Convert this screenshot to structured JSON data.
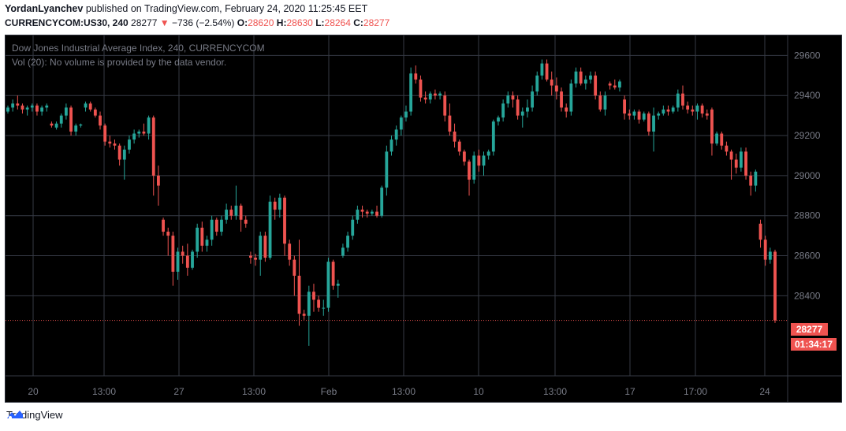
{
  "header": {
    "author": "YordanLyanchev",
    "published": "published on TradingView.com, February 24, 2020 11:25:45 EET",
    "symbol": "CURRENCYCOM:US30, 240",
    "last": "28277",
    "change_arrow": "▼",
    "change": "−736 (−2.54%)",
    "o_label": "O:",
    "o": "28620",
    "h_label": "H:",
    "h": "28630",
    "l_label": "L:",
    "l": "28264",
    "c_label": "C:",
    "c": "28277"
  },
  "legend": {
    "title": "Dow Jones Industrial Average Index, 240, CURRENCYCOM",
    "volume_note": "Vol (20): No volume is provided by the data vendor."
  },
  "price_label": "28277",
  "countdown_label": "01:34:17",
  "footer": {
    "brand": "TradingView"
  },
  "colors": {
    "up": "#26a69a",
    "down": "#ef5350",
    "grid": "#363a45",
    "text": "#787b86",
    "background": "#000000"
  },
  "chart_data": {
    "type": "candlestick",
    "title": "Dow Jones Industrial Average Index, 240, CURRENCYCOM",
    "ylim": [
      28000,
      29700
    ],
    "y_ticks": [
      29600,
      29400,
      29200,
      29000,
      28800,
      28600,
      28400
    ],
    "x_ticks": [
      "20",
      "13:00",
      "27",
      "13:00",
      "Feb",
      "13:00",
      "10",
      "13:00",
      "17",
      "17:00",
      "24"
    ],
    "last_price": 28277,
    "grid": true,
    "ohlc": [
      [
        29320,
        29350,
        29310,
        29340
      ],
      [
        29340,
        29380,
        29320,
        29360
      ],
      [
        29360,
        29400,
        29330,
        29350
      ],
      [
        29350,
        29360,
        29310,
        29330
      ],
      [
        29330,
        29350,
        29300,
        29340
      ],
      [
        29340,
        29360,
        29320,
        29350
      ],
      [
        29350,
        29360,
        29300,
        29320
      ],
      [
        29320,
        29350,
        29300,
        29340
      ],
      [
        29340,
        29360,
        29320,
        29350
      ],
      [
        29260,
        29270,
        29240,
        29250
      ],
      [
        29240,
        29270,
        29230,
        29260
      ],
      [
        29260,
        29310,
        29240,
        29300
      ],
      [
        29300,
        29360,
        29280,
        29340
      ],
      [
        29340,
        29350,
        29200,
        29220
      ],
      [
        29220,
        29260,
        29200,
        29250
      ],
      [
        29250,
        29260,
        29240,
        29255
      ],
      [
        29340,
        29370,
        29320,
        29360
      ],
      [
        29360,
        29370,
        29320,
        29330
      ],
      [
        29330,
        29340,
        29290,
        29300
      ],
      [
        29300,
        29320,
        29230,
        29250
      ],
      [
        29250,
        29260,
        29150,
        29170
      ],
      [
        29170,
        29200,
        29140,
        29160
      ],
      [
        29160,
        29180,
        29130,
        29150
      ],
      [
        29150,
        29160,
        29050,
        29080
      ],
      [
        29080,
        29150,
        28980,
        29130
      ],
      [
        29130,
        29200,
        29110,
        29180
      ],
      [
        29180,
        29230,
        29160,
        29210
      ],
      [
        29210,
        29230,
        29190,
        29220
      ],
      [
        29220,
        29260,
        29200,
        29210
      ],
      [
        29210,
        29300,
        29180,
        29290
      ],
      [
        29290,
        29300,
        28900,
        29000
      ],
      [
        29000,
        29050,
        28850,
        28950
      ],
      [
        28780,
        28790,
        28700,
        28720
      ],
      [
        28720,
        28740,
        28600,
        28700
      ],
      [
        28700,
        28720,
        28450,
        28520
      ],
      [
        28520,
        28640,
        28480,
        28620
      ],
      [
        28620,
        28650,
        28560,
        28600
      ],
      [
        28600,
        28660,
        28500,
        28540
      ],
      [
        28540,
        28630,
        28530,
        28620
      ],
      [
        28620,
        28760,
        28590,
        28740
      ],
      [
        28740,
        28770,
        28620,
        28650
      ],
      [
        28650,
        28700,
        28620,
        28680
      ],
      [
        28680,
        28800,
        28650,
        28780
      ],
      [
        28780,
        28790,
        28700,
        28720
      ],
      [
        28720,
        28800,
        28700,
        28780
      ],
      [
        28780,
        28860,
        28760,
        28830
      ],
      [
        28830,
        28850,
        28780,
        28800
      ],
      [
        28800,
        28950,
        28780,
        28850
      ],
      [
        28850,
        28860,
        28720,
        28780
      ],
      [
        28780,
        28800,
        28740,
        28760
      ],
      [
        28600,
        28620,
        28560,
        28590
      ],
      [
        28590,
        28610,
        28550,
        28580
      ],
      [
        28580,
        28720,
        28500,
        28700
      ],
      [
        28700,
        28720,
        28570,
        28590
      ],
      [
        28590,
        28900,
        28580,
        28870
      ],
      [
        28870,
        28890,
        28780,
        28830
      ],
      [
        28830,
        28910,
        28790,
        28890
      ],
      [
        28890,
        28900,
        28600,
        28660
      ],
      [
        28660,
        28680,
        28550,
        28580
      ],
      [
        28580,
        28600,
        28400,
        28500
      ],
      [
        28500,
        28680,
        28250,
        28310
      ],
      [
        28310,
        28330,
        28280,
        28300
      ],
      [
        28300,
        28450,
        28150,
        28420
      ],
      [
        28420,
        28460,
        28320,
        28380
      ],
      [
        28380,
        28400,
        28320,
        28340
      ],
      [
        28340,
        28380,
        28300,
        28340
      ],
      [
        28340,
        28590,
        28320,
        28570
      ],
      [
        28570,
        28580,
        28430,
        28450
      ],
      [
        28450,
        28480,
        28390,
        28460
      ],
      [
        28600,
        28660,
        28590,
        28640
      ],
      [
        28640,
        28720,
        28620,
        28700
      ],
      [
        28700,
        28800,
        28680,
        28780
      ],
      [
        28780,
        28850,
        28760,
        28830
      ],
      [
        28830,
        28850,
        28790,
        28820
      ],
      [
        28820,
        28830,
        28790,
        28810
      ],
      [
        28810,
        28830,
        28800,
        28820
      ],
      [
        28820,
        28850,
        28790,
        28800
      ],
      [
        28800,
        28950,
        28790,
        28940
      ],
      [
        28940,
        29150,
        28900,
        29120
      ],
      [
        29120,
        29200,
        29100,
        29180
      ],
      [
        29180,
        29250,
        29150,
        29230
      ],
      [
        29230,
        29300,
        29200,
        29290
      ],
      [
        29290,
        29350,
        29270,
        29320
      ],
      [
        29320,
        29540,
        29300,
        29510
      ],
      [
        29510,
        29550,
        29460,
        29480
      ],
      [
        29480,
        29500,
        29370,
        29390
      ],
      [
        29390,
        29420,
        29360,
        29380
      ],
      [
        29380,
        29420,
        29360,
        29410
      ],
      [
        29410,
        29430,
        29380,
        29400
      ],
      [
        29400,
        29420,
        29380,
        29410
      ],
      [
        29400,
        29420,
        29270,
        29300
      ],
      [
        29300,
        29360,
        29200,
        29220
      ],
      [
        29220,
        29260,
        29140,
        29170
      ],
      [
        29170,
        29180,
        29100,
        29120
      ],
      [
        29120,
        29130,
        29050,
        29070
      ],
      [
        29070,
        29080,
        28900,
        28980
      ],
      [
        28980,
        29120,
        28960,
        29100
      ],
      [
        29100,
        29130,
        29020,
        29050
      ],
      [
        29050,
        29120,
        29000,
        29100
      ],
      [
        29100,
        29130,
        29080,
        29120
      ],
      [
        29120,
        29280,
        29100,
        29270
      ],
      [
        29270,
        29300,
        29250,
        29290
      ],
      [
        29290,
        29380,
        29270,
        29360
      ],
      [
        29360,
        29420,
        29340,
        29400
      ],
      [
        29400,
        29420,
        29340,
        29380
      ],
      [
        29380,
        29400,
        29280,
        29300
      ],
      [
        29300,
        29340,
        29240,
        29320
      ],
      [
        29320,
        29380,
        29290,
        29340
      ],
      [
        29340,
        29450,
        29320,
        29420
      ],
      [
        29420,
        29520,
        29400,
        29500
      ],
      [
        29500,
        29580,
        29480,
        29560
      ],
      [
        29560,
        29580,
        29470,
        29480
      ],
      [
        29480,
        29520,
        29400,
        29450
      ],
      [
        29450,
        29490,
        29380,
        29420
      ],
      [
        29420,
        29440,
        29320,
        29340
      ],
      [
        29340,
        29360,
        29290,
        29320
      ],
      [
        29320,
        29480,
        29300,
        29460
      ],
      [
        29460,
        29540,
        29440,
        29520
      ],
      [
        29520,
        29540,
        29450,
        29460
      ],
      [
        29460,
        29500,
        29430,
        29480
      ],
      [
        29480,
        29520,
        29460,
        29500
      ],
      [
        29500,
        29520,
        29380,
        29400
      ],
      [
        29400,
        29420,
        29320,
        29330
      ],
      [
        29330,
        29420,
        29300,
        29400
      ],
      [
        29460,
        29470,
        29430,
        29450
      ],
      [
        29450,
        29480,
        29430,
        29440
      ],
      [
        29440,
        29480,
        29420,
        29470
      ],
      [
        29380,
        29400,
        29280,
        29310
      ],
      [
        29310,
        29330,
        29280,
        29300
      ],
      [
        29300,
        29330,
        29280,
        29320
      ],
      [
        29320,
        29330,
        29260,
        29280
      ],
      [
        29280,
        29320,
        29270,
        29310
      ],
      [
        29310,
        29320,
        29200,
        29220
      ],
      [
        29220,
        29340,
        29120,
        29300
      ],
      [
        29300,
        29320,
        29280,
        29310
      ],
      [
        29310,
        29350,
        29300,
        29330
      ],
      [
        29330,
        29350,
        29300,
        29320
      ],
      [
        29320,
        29350,
        29310,
        29340
      ],
      [
        29340,
        29430,
        29320,
        29410
      ],
      [
        29410,
        29450,
        29330,
        29350
      ],
      [
        29350,
        29370,
        29310,
        29330
      ],
      [
        29330,
        29350,
        29300,
        29320
      ],
      [
        29320,
        29360,
        29280,
        29350
      ],
      [
        29350,
        29360,
        29290,
        29310
      ],
      [
        29310,
        29330,
        29280,
        29300
      ],
      [
        29330,
        29340,
        29100,
        29160
      ],
      [
        29160,
        29220,
        29150,
        29210
      ],
      [
        29210,
        29220,
        29130,
        29150
      ],
      [
        29150,
        29170,
        29100,
        29120
      ],
      [
        29120,
        29130,
        28980,
        29080
      ],
      [
        29080,
        29110,
        29010,
        29040
      ],
      [
        29040,
        29140,
        29020,
        29120
      ],
      [
        29120,
        29140,
        28980,
        29000
      ],
      [
        29000,
        29020,
        28900,
        28950
      ],
      [
        28950,
        29030,
        28920,
        29020
      ],
      [
        28760,
        28780,
        28640,
        28680
      ],
      [
        28680,
        28700,
        28550,
        28580
      ],
      [
        28580,
        28640,
        28560,
        28620
      ],
      [
        28620,
        28630,
        28264,
        28277
      ]
    ]
  }
}
